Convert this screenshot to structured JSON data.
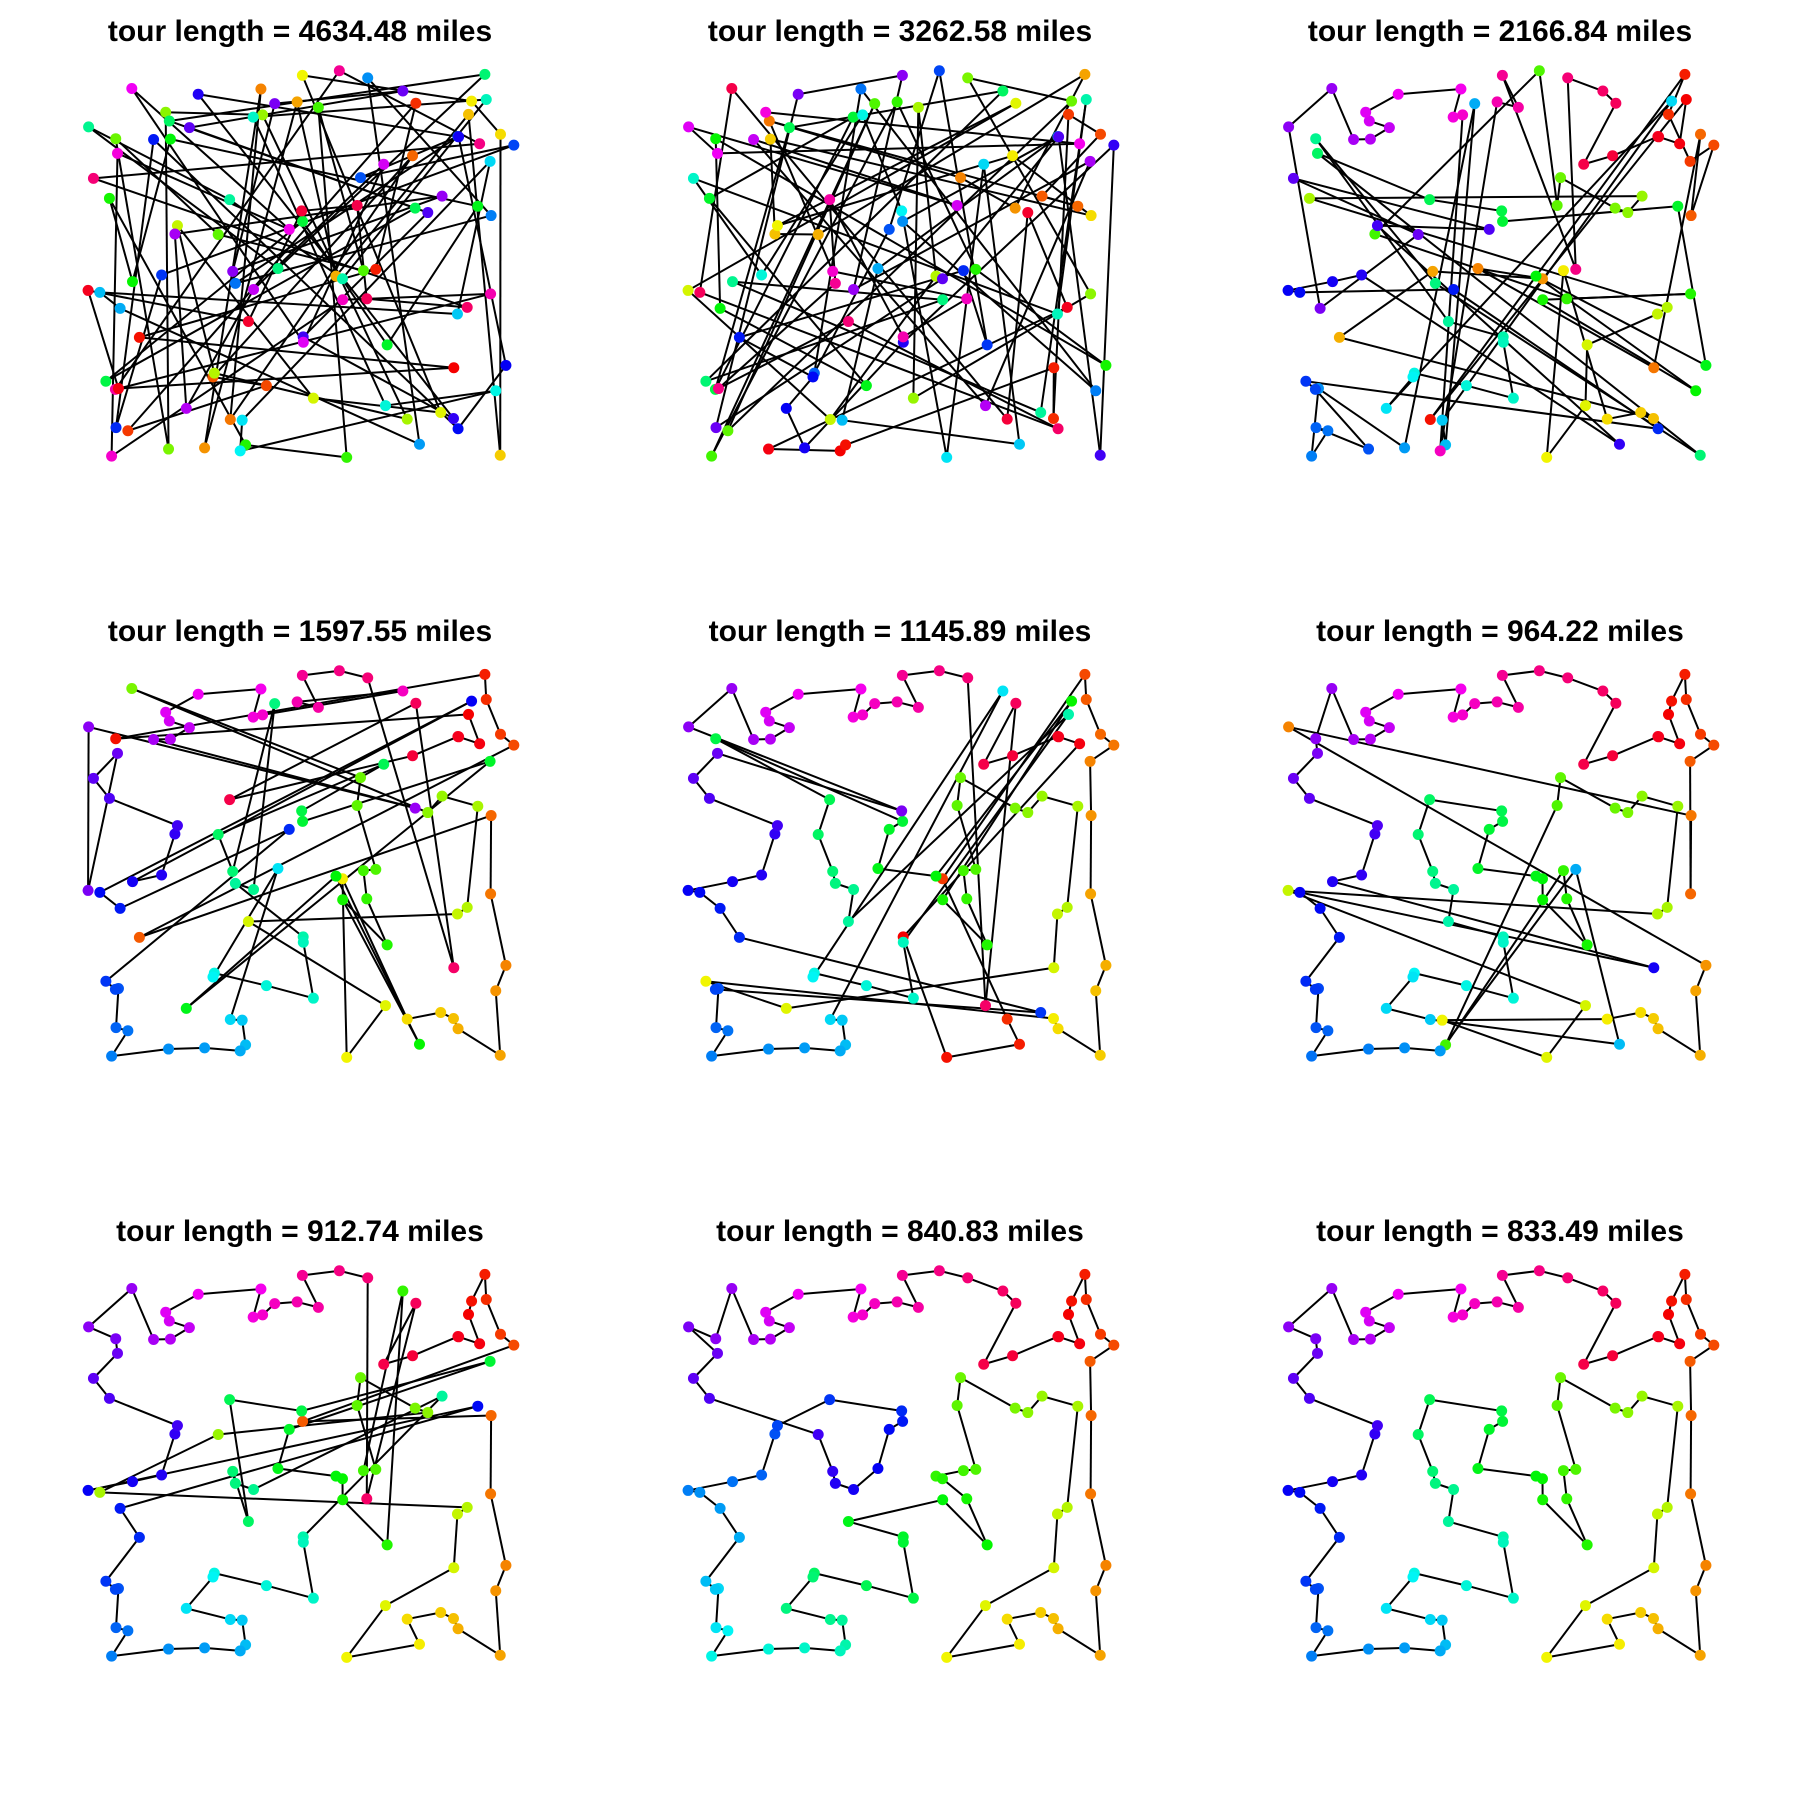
{
  "figure": {
    "city_count": 100,
    "panels": [
      {
        "title": "tour length = 4634.48 miles",
        "tour_length_miles": 4634.48,
        "tour_style": "random-crossing"
      },
      {
        "title": "tour length = 3262.58 miles",
        "tour_length_miles": 3262.58,
        "tour_style": "random-crossing"
      },
      {
        "title": "tour length = 2166.84 miles",
        "tour_length_miles": 2166.84,
        "tour_style": "partially-ordered"
      },
      {
        "title": "tour length = 1597.55 miles",
        "tour_length_miles": 1597.55,
        "tour_style": "partially-ordered"
      },
      {
        "title": "tour length = 1145.89 miles",
        "tour_length_miles": 1145.89,
        "tour_style": "mostly-ordered"
      },
      {
        "title": "tour length = 964.22 miles",
        "tour_length_miles": 964.22,
        "tour_style": "nearly-optimal"
      },
      {
        "title": "tour length = 912.74 miles",
        "tour_length_miles": 912.74,
        "tour_style": "nearly-optimal"
      },
      {
        "title": "tour length = 840.83 miles",
        "tour_length_miles": 840.83,
        "tour_style": "near-optimal"
      },
      {
        "title": "tour length = 833.49 miles",
        "tour_length_miles": 833.49,
        "tour_style": "near-optimal"
      }
    ]
  },
  "colors": {
    "edge": "#000000",
    "title": "#000000",
    "background": "#ffffff",
    "city_palette": "rainbow (hue varies along tour order)"
  }
}
